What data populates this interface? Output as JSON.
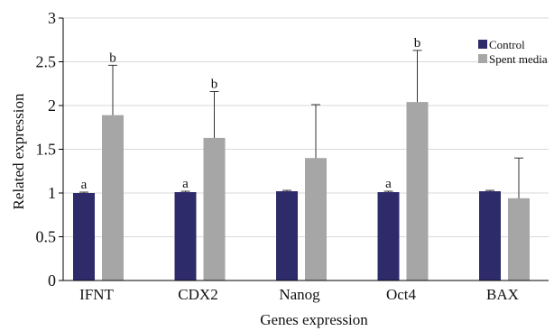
{
  "chart_data": {
    "type": "bar",
    "title": "",
    "xlabel": "Genes expression",
    "ylabel": "Related expression",
    "categories": [
      "IFNT",
      "CDX2",
      "Nanog",
      "Oct4",
      "BAX"
    ],
    "ylim": [
      0,
      3
    ],
    "yticks": [
      "0",
      "0.5",
      "1",
      "1.5",
      "2",
      "2.5",
      "3"
    ],
    "grid": true,
    "legend_position": "top-right",
    "series": [
      {
        "name": "Control",
        "color": "#2e2b6b",
        "values": [
          1.0,
          1.01,
          1.02,
          1.01,
          1.02
        ],
        "errors": [
          0.01,
          0.01,
          0.01,
          0.01,
          0.01
        ],
        "sig_labels": [
          "a",
          "a",
          "",
          "a",
          ""
        ]
      },
      {
        "name": "Spent media",
        "color": "#a6a6a6",
        "values": [
          1.89,
          1.63,
          1.4,
          2.04,
          0.94
        ],
        "errors": [
          0.57,
          0.53,
          0.61,
          0.59,
          0.46
        ],
        "sig_labels": [
          "b",
          "b",
          "",
          "b",
          ""
        ]
      }
    ]
  }
}
